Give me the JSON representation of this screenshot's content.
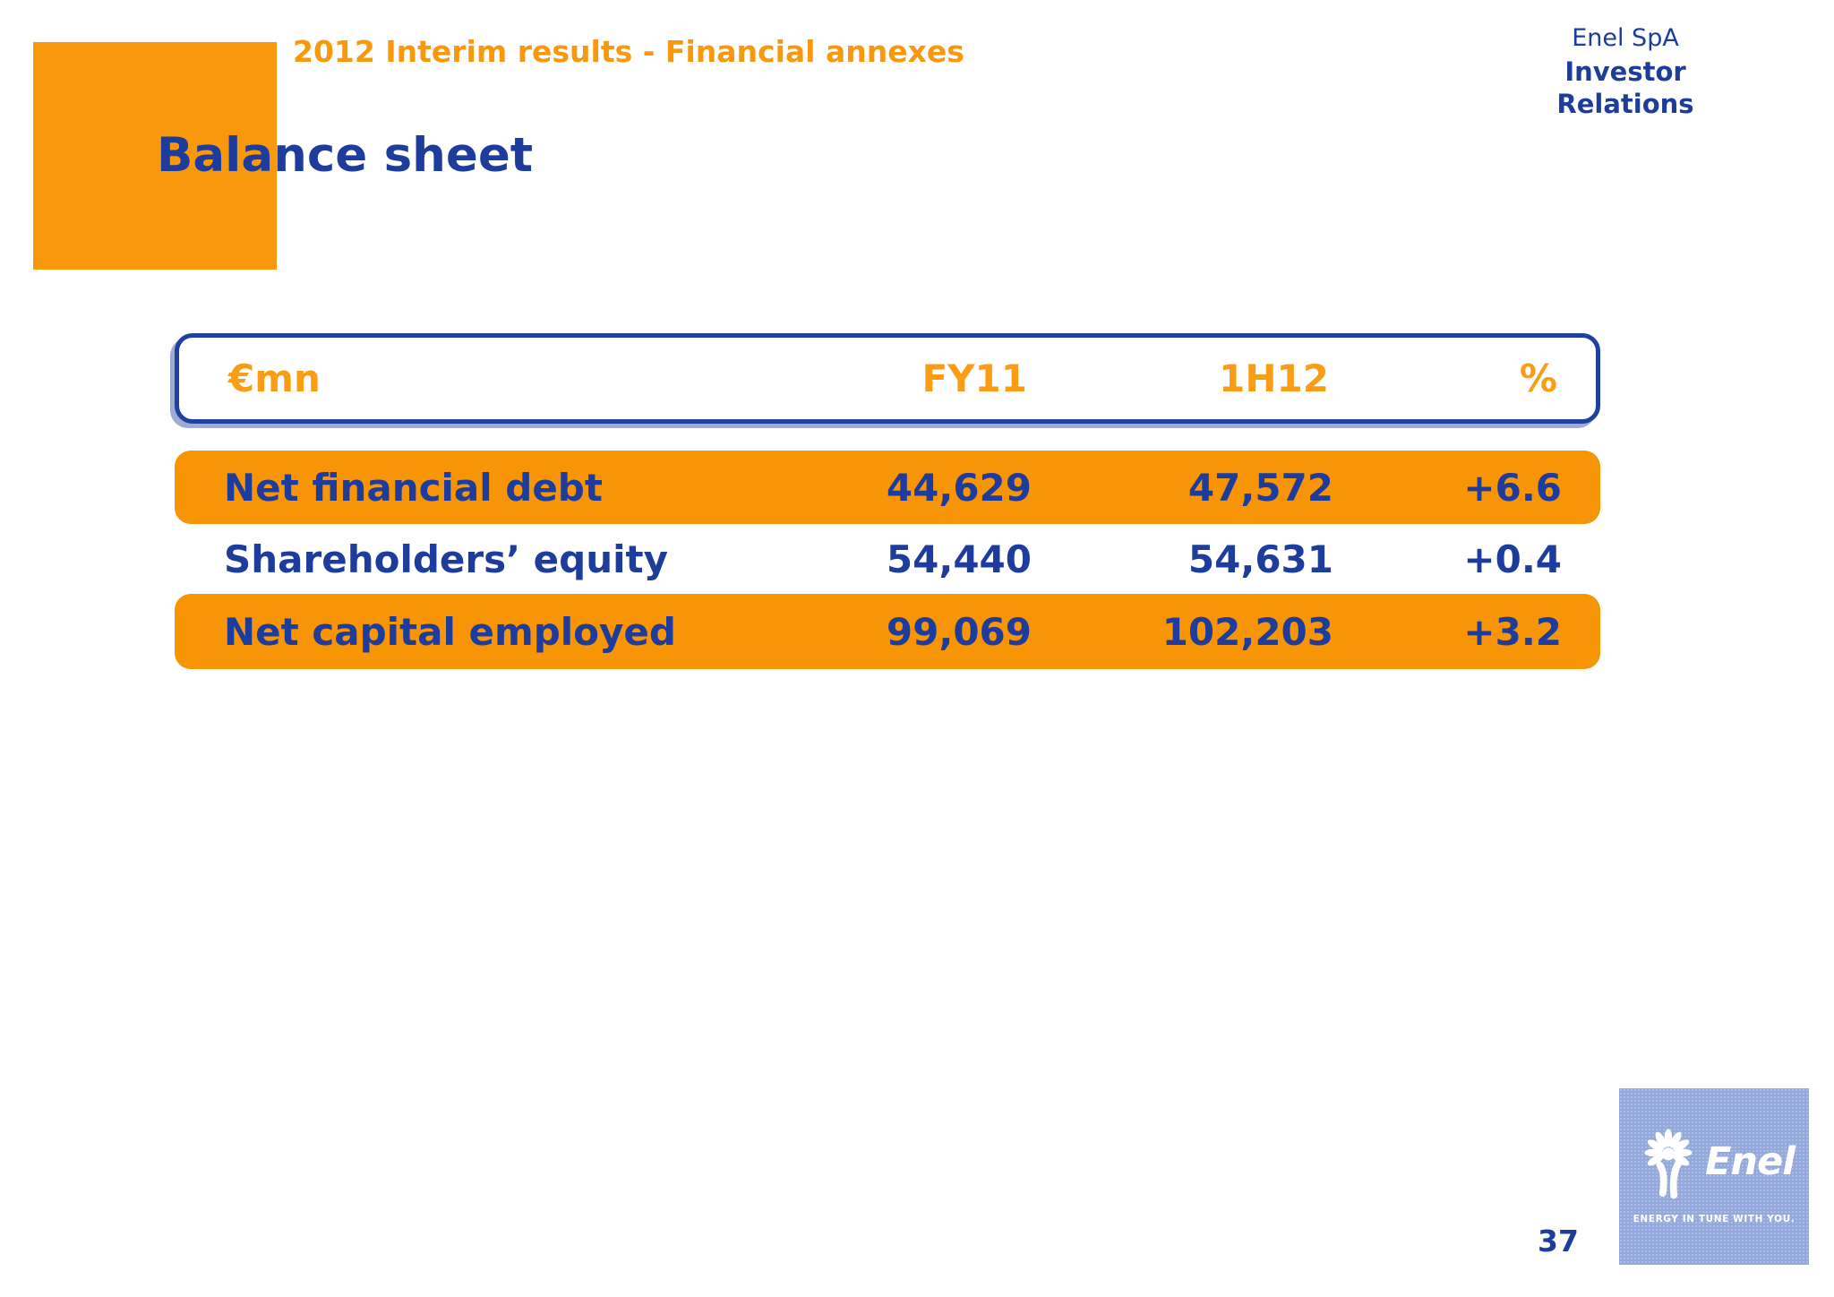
{
  "header": {
    "breadcrumb": "2012 Interim results - Financial annexes",
    "company": "Enel SpA",
    "department": "Investor Relations"
  },
  "title": "Balance sheet",
  "table": {
    "unit_label": "€mn",
    "columns": [
      "FY11",
      "1H12",
      "%"
    ],
    "rows": [
      {
        "label": "Net financial debt",
        "fy11": "44,629",
        "h12": "47,572",
        "pct": "+6.6",
        "highlight": true
      },
      {
        "label": "Shareholders’ equity",
        "fy11": "54,440",
        "h12": "54,631",
        "pct": "+0.4",
        "highlight": false
      },
      {
        "label": "Net capital employed",
        "fy11": "99,069",
        "h12": "102,203",
        "pct": "+3.2",
        "highlight": true
      }
    ]
  },
  "footer": {
    "page_number": "37"
  },
  "logo": {
    "brand": "Enel",
    "tagline": "ENERGY IN TUNE WITH YOU.",
    "icon": "enel-tree-icon"
  },
  "colors": {
    "orange_fill": "#F89506",
    "orange_square": "#F8980D",
    "orange_header_text": "#F99D16",
    "navy_text": "#1D3C9C",
    "table_border_blue": "#1F409E",
    "logo_background": "#93A9DC"
  }
}
